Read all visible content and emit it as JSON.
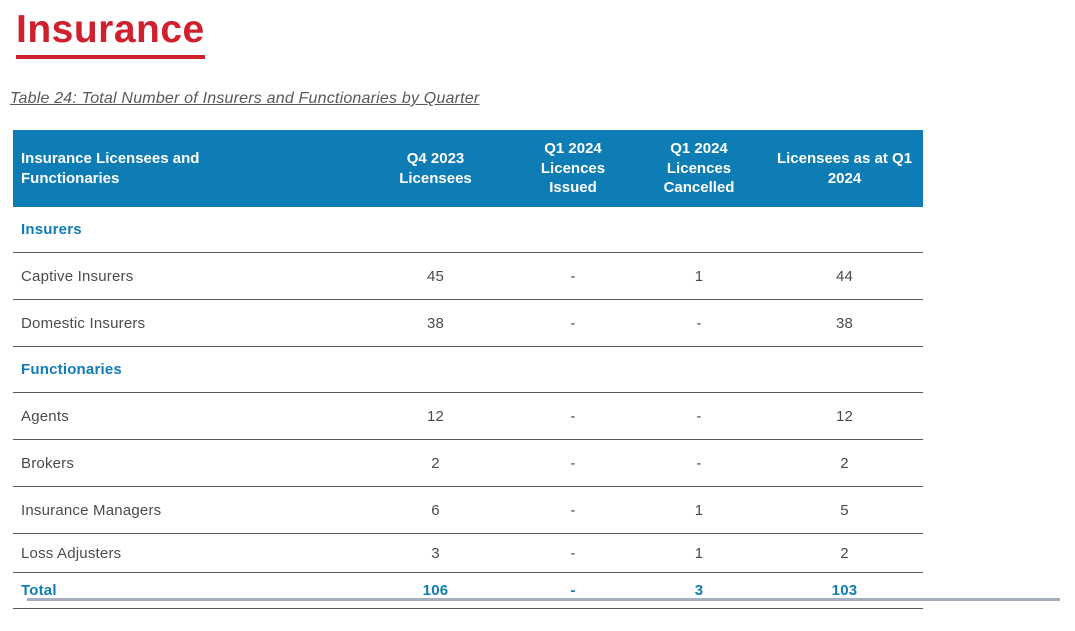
{
  "page": {
    "title": "Insurance",
    "caption": "Table 24: Total Number of Insurers and Functionaries by Quarter"
  },
  "colors": {
    "title_red": "#D0202E",
    "header_blue": "#0E7CB5",
    "section_blue": "#0F7CB5",
    "body_text": "#4B4B4D",
    "row_line": "#595959",
    "footer_line": "#A5AFBD"
  },
  "table": {
    "columns": [
      "Insurance Licensees and Functionaries",
      "Q4 2023 Licensees",
      "Q1 2024 Licences Issued",
      "Q1 2024 Licences Cancelled",
      "Licensees as at Q1 2024"
    ],
    "rows": [
      {
        "type": "section",
        "label": "Insurers"
      },
      {
        "type": "data",
        "label": "Captive Insurers",
        "values": [
          "45",
          "-",
          "1",
          "44"
        ]
      },
      {
        "type": "data",
        "label": "Domestic Insurers",
        "values": [
          "38",
          "-",
          "-",
          "38"
        ]
      },
      {
        "type": "section",
        "label": "Functionaries"
      },
      {
        "type": "data",
        "label": "Agents",
        "values": [
          "12",
          "-",
          "-",
          "12"
        ]
      },
      {
        "type": "data",
        "label": "Brokers",
        "values": [
          "2",
          "-",
          "-",
          "2"
        ]
      },
      {
        "type": "data",
        "label": "Insurance Managers",
        "values": [
          "6",
          "-",
          "1",
          "5"
        ]
      },
      {
        "type": "data",
        "label": "Loss Adjusters",
        "values": [
          "3",
          "-",
          "1",
          "2"
        ]
      },
      {
        "type": "total",
        "label": "Total",
        "values": [
          "106",
          "-",
          "3",
          "103"
        ]
      }
    ]
  }
}
